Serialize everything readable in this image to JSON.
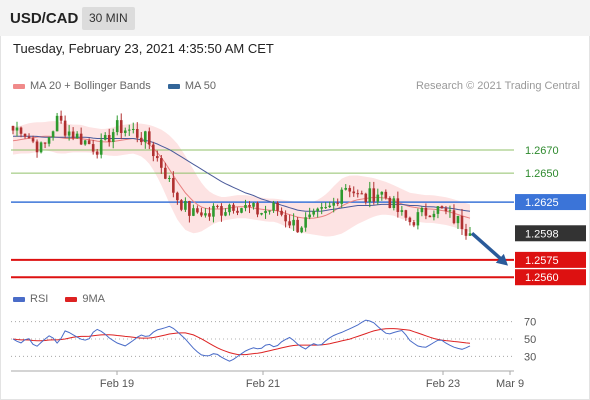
{
  "header": {
    "symbol": "USD/CAD",
    "timeframe": "30 MIN"
  },
  "datetime": "Tuesday, February 23, 2021 4:35:50 AM CET",
  "credit": "Research © 2021 Trading Central",
  "colors": {
    "bull": "#2e9a2e",
    "bear": "#b03030",
    "ma20": "#e88080",
    "band_fill": "#fde3e3",
    "ma50": "#4a5a9a",
    "support": "#dd1111",
    "resistance_blue": "#3b74d8",
    "resistance_green": "#90c06a",
    "last_price": "#333333",
    "arrow": "#2a5a9a",
    "rsi": "#4a6cc8",
    "rsi_ma": "#dd2222"
  },
  "chart_data": [
    {
      "type": "candlestick",
      "title": "",
      "legend": [
        {
          "name": "MA 20 + Bollinger Bands",
          "color": "#e88080"
        },
        {
          "name": "MA 50",
          "color": "#336699"
        }
      ],
      "legend_position": "top-left",
      "y_range": [
        1.2555,
        1.2715
      ],
      "x_range_days": [
        "Feb 18",
        "Mar 9"
      ],
      "x_ticks": [
        "Feb 19",
        "Feb 21",
        "Feb 23",
        "Mar 9"
      ],
      "levels": [
        {
          "value": 1.267,
          "label": "1.2670",
          "kind": "resistance"
        },
        {
          "value": 1.265,
          "label": "1.2650",
          "kind": "resistance"
        },
        {
          "value": 1.2625,
          "label": "1.2625",
          "kind": "pivot"
        },
        {
          "value": 1.2598,
          "label": "1.2598",
          "kind": "last"
        },
        {
          "value": 1.2575,
          "label": "1.2575",
          "kind": "support"
        },
        {
          "value": 1.256,
          "label": "1.2560",
          "kind": "support"
        }
      ],
      "price_path": [
        1.2687,
        1.269,
        1.2682,
        1.2675,
        1.267,
        1.2685,
        1.2697,
        1.2688,
        1.2684,
        1.268,
        1.2676,
        1.2672,
        1.2673,
        1.2684,
        1.269,
        1.2688,
        1.2686,
        1.2682,
        1.2678,
        1.2665,
        1.2655,
        1.264,
        1.2628,
        1.262,
        1.2614,
        1.2618,
        1.2612,
        1.262,
        1.2618,
        1.2624,
        1.2622,
        1.262,
        1.2618,
        1.2616,
        1.2618,
        1.262,
        1.2614,
        1.2608,
        1.2604,
        1.2608,
        1.261,
        1.2615,
        1.2618,
        1.2625,
        1.264,
        1.2638,
        1.263,
        1.2628,
        1.2632,
        1.2634,
        1.2628,
        1.262,
        1.2612,
        1.2608,
        1.2612,
        1.2616,
        1.262,
        1.2618,
        1.2614,
        1.261,
        1.2606,
        1.2598
      ],
      "ma20_path": [
        1.2678,
        1.2679,
        1.268,
        1.2681,
        1.2682,
        1.2682,
        1.2681,
        1.268,
        1.268,
        1.268,
        1.2679,
        1.2678,
        1.2677,
        1.2677,
        1.2678,
        1.2679,
        1.268,
        1.2679,
        1.2676,
        1.267,
        1.2662,
        1.2652,
        1.2642,
        1.2633,
        1.2626,
        1.2621,
        1.2619,
        1.2619,
        1.2619,
        1.262,
        1.2621,
        1.2621,
        1.262,
        1.2619,
        1.2618,
        1.2618,
        1.2616,
        1.2614,
        1.2612,
        1.2611,
        1.2611,
        1.2612,
        1.2614,
        1.2618,
        1.2622,
        1.2625,
        1.2627,
        1.2628,
        1.2629,
        1.2629,
        1.2628,
        1.2626,
        1.2623,
        1.2621,
        1.262,
        1.2619,
        1.2619,
        1.2618,
        1.2617,
        1.2615,
        1.2613,
        1.2611
      ],
      "ma50_path": [
        1.2682,
        1.2682,
        1.2682,
        1.2682,
        1.2681,
        1.2681,
        1.2681,
        1.2681,
        1.2681,
        1.2681,
        1.2681,
        1.268,
        1.268,
        1.268,
        1.268,
        1.268,
        1.268,
        1.2679,
        1.2678,
        1.2676,
        1.2673,
        1.267,
        1.2666,
        1.2662,
        1.2658,
        1.2654,
        1.265,
        1.2646,
        1.2642,
        1.2639,
        1.2636,
        1.2633,
        1.2631,
        1.2628,
        1.2626,
        1.2624,
        1.2622,
        1.262,
        1.2618,
        1.2617,
        1.2617,
        1.2617,
        1.2618,
        1.2619,
        1.262,
        1.2621,
        1.2622,
        1.2622,
        1.2622,
        1.2623,
        1.2623,
        1.2623,
        1.2623,
        1.2622,
        1.2622,
        1.2621,
        1.2621,
        1.262,
        1.262,
        1.2619,
        1.2618,
        1.2617
      ],
      "bb_width_path": [
        0.0012,
        0.0012,
        0.0013,
        0.0013,
        0.0012,
        0.0013,
        0.0014,
        0.0013,
        0.0012,
        0.0012,
        0.0011,
        0.0011,
        0.0011,
        0.0012,
        0.0013,
        0.0013,
        0.0013,
        0.0014,
        0.0016,
        0.002,
        0.0025,
        0.003,
        0.0033,
        0.0032,
        0.0028,
        0.0022,
        0.0016,
        0.0012,
        0.001,
        0.001,
        0.001,
        0.001,
        0.001,
        0.001,
        0.001,
        0.001,
        0.0011,
        0.0012,
        0.0013,
        0.0013,
        0.0014,
        0.0016,
        0.0019,
        0.0022,
        0.0024,
        0.0023,
        0.0021,
        0.0019,
        0.0017,
        0.0015,
        0.0014,
        0.0013,
        0.0013,
        0.0012,
        0.0012,
        0.0012,
        0.0012,
        0.0012,
        0.0012,
        0.0012,
        0.0012,
        0.0012
      ],
      "forecast": {
        "from": 1.2598,
        "to": 1.257
      }
    },
    {
      "type": "line",
      "title": "",
      "legend": [
        {
          "name": "RSI",
          "color": "#4a6cc8"
        },
        {
          "name": "9MA",
          "color": "#dd2222"
        }
      ],
      "y_range": [
        20,
        80
      ],
      "y_ticks": [
        70,
        50,
        30
      ],
      "rsi_path": [
        50,
        45,
        52,
        40,
        48,
        55,
        44,
        60,
        55,
        50,
        48,
        62,
        58,
        50,
        45,
        42,
        48,
        55,
        52,
        60,
        62,
        65,
        58,
        50,
        40,
        32,
        30,
        34,
        28,
        24,
        30,
        36,
        40,
        38,
        45,
        40,
        48,
        52,
        44,
        38,
        45,
        42,
        50,
        55,
        58,
        62,
        66,
        72,
        70,
        62,
        55,
        58,
        60,
        48,
        42,
        40,
        45,
        50,
        44,
        40,
        38,
        42
      ],
      "rsi_ma_path": [
        50,
        49,
        49,
        48,
        48,
        49,
        49,
        50,
        52,
        53,
        53,
        54,
        55,
        55,
        54,
        53,
        52,
        51,
        51,
        52,
        54,
        56,
        57,
        57,
        55,
        51,
        46,
        41,
        37,
        34,
        32,
        32,
        33,
        34,
        36,
        38,
        40,
        42,
        43,
        43,
        43,
        43,
        44,
        46,
        48,
        50,
        53,
        56,
        59,
        61,
        62,
        62,
        61,
        60,
        57,
        54,
        51,
        49,
        48,
        47,
        46,
        45
      ]
    }
  ]
}
